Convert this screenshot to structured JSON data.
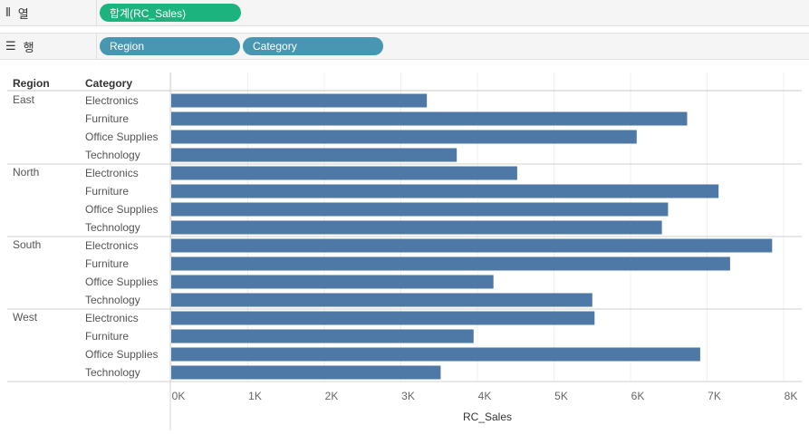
{
  "shelves": {
    "columns": {
      "label": "열",
      "icon": "columns-shelf-icon",
      "pills": [
        "합계(RC_Sales)"
      ]
    },
    "rows": {
      "label": "행",
      "icon": "rows-shelf-icon",
      "pills": [
        "Region",
        "Category"
      ]
    }
  },
  "colors": {
    "bar": "#4e79a7",
    "pill_measure": "#1cb37e",
    "pill_dimension": "#4996b2"
  },
  "chart_data": {
    "type": "bar",
    "orientation": "horizontal",
    "row_headers": [
      "Region",
      "Category"
    ],
    "xlabel": "RC_Sales",
    "xlim": [
      0,
      8200
    ],
    "xticks": [
      0,
      1000,
      2000,
      3000,
      4000,
      5000,
      6000,
      7000,
      8000
    ],
    "xtick_labels": [
      "0K",
      "1K",
      "2K",
      "3K",
      "4K",
      "5K",
      "6K",
      "7K",
      "8K"
    ],
    "grid": true,
    "groups": [
      {
        "region": "East",
        "categories": [
          "Electronics",
          "Furniture",
          "Office Supplies",
          "Technology"
        ],
        "values": [
          3340,
          6740,
          6080,
          3730
        ]
      },
      {
        "region": "North",
        "categories": [
          "Electronics",
          "Furniture",
          "Office Supplies",
          "Technology"
        ],
        "values": [
          4520,
          7150,
          6490,
          6410
        ]
      },
      {
        "region": "South",
        "categories": [
          "Electronics",
          "Furniture",
          "Office Supplies",
          "Technology"
        ],
        "values": [
          7850,
          7300,
          4210,
          5500
        ]
      },
      {
        "region": "West",
        "categories": [
          "Electronics",
          "Furniture",
          "Office Supplies",
          "Technology"
        ],
        "values": [
          5530,
          3950,
          6910,
          3520
        ]
      }
    ]
  }
}
